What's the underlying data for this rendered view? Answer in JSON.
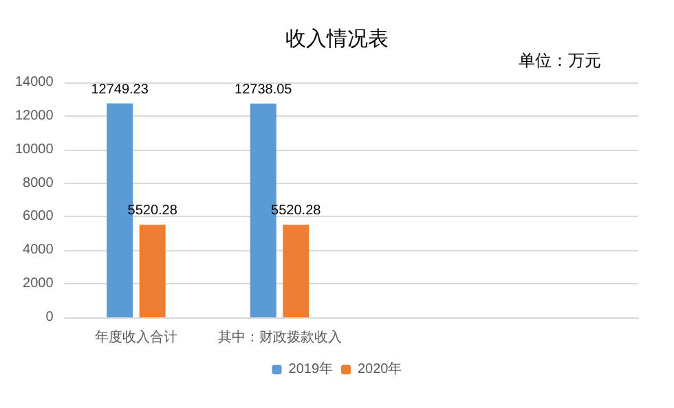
{
  "chart_data": {
    "type": "bar",
    "title": "收入情况表",
    "annotations": [
      "单位：万元"
    ],
    "categories": [
      "年度收入合计",
      "其中：财政拨款收入",
      null,
      null
    ],
    "series": [
      {
        "name": "2019年",
        "color": "#5b9bd5",
        "values": [
          12749.23,
          12738.05,
          null,
          null
        ]
      },
      {
        "name": "2020年",
        "color": "#ed7d31",
        "values": [
          5520.28,
          5520.28,
          null,
          null
        ]
      }
    ],
    "ylim": [
      0,
      14000
    ],
    "yticks": [
      0,
      2000,
      4000,
      6000,
      8000,
      10000,
      12000,
      14000
    ],
    "grid": "y",
    "legend": "bottom",
    "data_labels": true
  }
}
